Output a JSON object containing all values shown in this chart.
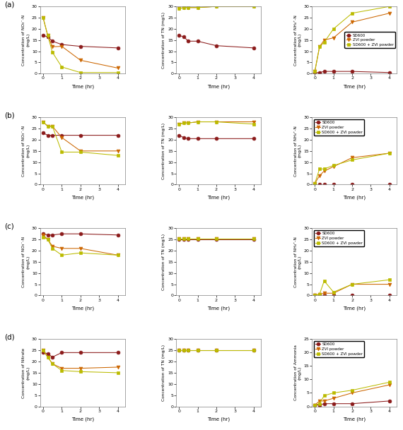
{
  "time": [
    0,
    0.25,
    0.5,
    1,
    2,
    4
  ],
  "colors": {
    "SD600": "#8B1A1A",
    "ZVI": "#CC6600",
    "SD600_ZVI": "#BBBB00"
  },
  "markers": {
    "SD600": "o",
    "ZVI": "v",
    "SD600_ZVI": "s"
  },
  "legend_labels": [
    "SD600",
    "ZVI powder",
    "SD600 + ZVI powder"
  ],
  "rows": [
    {
      "label": "(a)",
      "nitrate": {
        "SD600": [
          17,
          16.5,
          14.5,
          13,
          12.2,
          11.5
        ],
        "ZVI": [
          25,
          17,
          12,
          12.2,
          6,
          2.5
        ],
        "SD600_ZVI": [
          25,
          17,
          9.5,
          3,
          0.5,
          0.5
        ],
        "ylabel": "Concentration of NO₃⁻-N\n(mg/L)",
        "ylim": [
          0,
          30
        ],
        "yticks": [
          0,
          5,
          10,
          15,
          20,
          25,
          30
        ]
      },
      "TN": {
        "SD600": [
          17,
          16.5,
          14.5,
          14.5,
          12.5,
          11.5
        ],
        "ZVI": [
          29,
          29.5,
          29.5,
          29.5,
          30,
          30
        ],
        "SD600_ZVI": [
          29,
          29.5,
          29.5,
          29.5,
          30,
          30
        ],
        "ylabel": "Concentration of TN (mg/L)",
        "ylim": [
          0,
          30
        ],
        "yticks": [
          0,
          5,
          10,
          15,
          20,
          25,
          30
        ]
      },
      "ammonium": {
        "SD600": [
          0.5,
          0.5,
          1,
          1,
          1,
          0.5
        ],
        "ZVI": [
          1,
          12,
          15,
          16,
          23,
          27
        ],
        "SD600_ZVI": [
          1,
          12,
          14,
          20,
          27,
          30
        ],
        "ylabel": "Concentration of NH₄⁺-N\n(mg/L)",
        "ylim": [
          0,
          30
        ],
        "yticks": [
          0,
          5,
          10,
          15,
          20,
          25,
          30
        ],
        "legend_loc": "center right"
      }
    },
    {
      "label": "(b)",
      "nitrate": {
        "SD600": [
          23,
          22,
          22,
          22,
          22,
          22
        ],
        "ZVI": [
          28,
          26,
          26,
          21,
          15,
          15
        ],
        "SD600_ZVI": [
          28,
          26,
          26,
          14.5,
          14.5,
          13
        ],
        "ylabel": "Concentration of NO₃⁻-N\n(mg/L)",
        "ylim": [
          0,
          30
        ],
        "yticks": [
          0,
          5,
          10,
          15,
          20,
          25,
          30
        ]
      },
      "TN": {
        "SD600": [
          22,
          21,
          20.5,
          20.5,
          20.5,
          20.5
        ],
        "ZVI": [
          27,
          27.5,
          27.5,
          28,
          28,
          28
        ],
        "SD600_ZVI": [
          27,
          27.5,
          27.5,
          28,
          28,
          27
        ],
        "ylabel": "Concentration of TN (mg/L)",
        "ylim": [
          0,
          30
        ],
        "yticks": [
          0,
          5,
          10,
          15,
          20,
          25,
          30
        ]
      },
      "ammonium": {
        "SD600": [
          0.2,
          0.2,
          0.2,
          0.2,
          0.2,
          0.2
        ],
        "ZVI": [
          0.5,
          4,
          6,
          8,
          12,
          14
        ],
        "SD600_ZVI": [
          0.5,
          7,
          7,
          8.5,
          11,
          14
        ],
        "ylabel": "Concentration of NH₄⁺-N\n(mg/L)",
        "ylim": [
          0,
          30
        ],
        "yticks": [
          0,
          5,
          10,
          15,
          20,
          25,
          30
        ],
        "legend_loc": "upper left"
      }
    },
    {
      "label": "(c)",
      "nitrate": {
        "SD600": [
          27.5,
          27,
          27,
          27.5,
          27.5,
          27
        ],
        "ZVI": [
          27,
          25,
          22,
          21,
          21,
          18
        ],
        "SD600_ZVI": [
          26,
          25,
          21,
          18,
          19,
          18
        ],
        "ylabel": "Concentration of NO₃⁻-N\n(mg/L)",
        "ylim": [
          0,
          30
        ],
        "yticks": [
          0,
          5,
          10,
          15,
          20,
          25,
          30
        ]
      },
      "TN": {
        "SD600": [
          25,
          25,
          25,
          25,
          25,
          25
        ],
        "ZVI": [
          25.5,
          25.5,
          25.5,
          25.5,
          25.5,
          25.5
        ],
        "SD600_ZVI": [
          25.5,
          25.5,
          25.5,
          25.5,
          25.5,
          25.5
        ],
        "ylabel": "Concentration of TN (mg/L)",
        "ylim": [
          0,
          30
        ],
        "yticks": [
          0,
          5,
          10,
          15,
          20,
          25,
          30
        ]
      },
      "ammonium": {
        "SD600": [
          0.2,
          0.2,
          0.2,
          0.2,
          0.2,
          0.2
        ],
        "ZVI": [
          0.2,
          0.5,
          1,
          1,
          5,
          5
        ],
        "SD600_ZVI": [
          0.2,
          0.5,
          6.5,
          1.5,
          5,
          7
        ],
        "ylabel": "Concentration of NH₄⁺-N\n(mg/L)",
        "ylim": [
          0,
          30
        ],
        "yticks": [
          0,
          5,
          10,
          15,
          20,
          25,
          30
        ],
        "legend_loc": "upper left"
      }
    },
    {
      "label": "(d)",
      "nitrate": {
        "SD600": [
          24,
          23.5,
          22,
          24,
          24,
          24
        ],
        "ZVI": [
          25,
          22,
          19,
          17,
          17,
          17.5
        ],
        "SD600_ZVI": [
          25,
          22,
          19,
          16,
          15.5,
          15
        ],
        "ylabel": "Concentration of Nitrate\n(mg/L)",
        "ylim": [
          0,
          30
        ],
        "yticks": [
          0,
          5,
          10,
          15,
          20,
          25,
          30
        ]
      },
      "TN": {
        "SD600": [
          25,
          25,
          25,
          25,
          25,
          25
        ],
        "ZVI": [
          25,
          25,
          25,
          25,
          25,
          25
        ],
        "SD600_ZVI": [
          25,
          25,
          25,
          25,
          25,
          25
        ],
        "ylabel": "Concentration of TN (mg/L)",
        "ylim": [
          0,
          30
        ],
        "yticks": [
          0,
          5,
          10,
          15,
          20,
          25,
          30
        ]
      },
      "ammonium": {
        "SD600": [
          0.5,
          0.5,
          1,
          1,
          1,
          2
        ],
        "ZVI": [
          0.5,
          2,
          2,
          3,
          5,
          8
        ],
        "SD600_ZVI": [
          0.5,
          1,
          4,
          5,
          6,
          9
        ],
        "ylabel": "Concentration of Ammonia\n(mg/L)",
        "ylim": [
          0,
          25
        ],
        "yticks": [
          0,
          5,
          10,
          15,
          20,
          25
        ],
        "legend_loc": "upper left"
      }
    }
  ],
  "xlabel": "Time (hr)",
  "xticks": [
    0,
    1,
    2,
    3,
    4
  ]
}
